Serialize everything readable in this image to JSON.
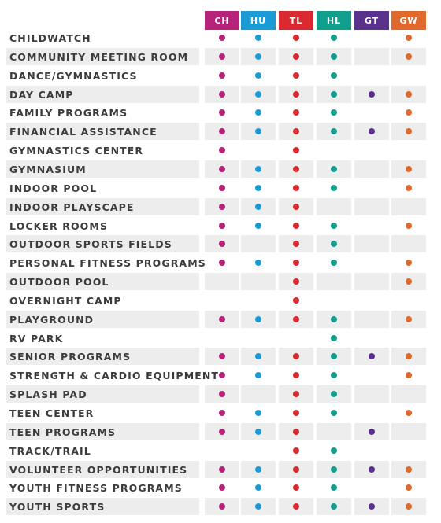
{
  "columns": [
    {
      "code": "CH",
      "color": "#b5247a"
    },
    {
      "code": "HU",
      "color": "#1b9bd6"
    },
    {
      "code": "TL",
      "color": "#d92a32"
    },
    {
      "code": "HL",
      "color": "#129e8c"
    },
    {
      "code": "GT",
      "color": "#5a318c"
    },
    {
      "code": "GW",
      "color": "#e06a2e"
    }
  ],
  "rows": [
    {
      "label": "CHILDWATCH",
      "marks": [
        1,
        1,
        1,
        1,
        0,
        1
      ]
    },
    {
      "label": "COMMUNITY MEETING ROOM",
      "marks": [
        1,
        1,
        1,
        1,
        0,
        1
      ]
    },
    {
      "label": "DANCE/GYMNASTICS",
      "marks": [
        1,
        1,
        1,
        1,
        0,
        0
      ]
    },
    {
      "label": "DAY CAMP",
      "marks": [
        1,
        1,
        1,
        1,
        1,
        1
      ]
    },
    {
      "label": "FAMILY PROGRAMS",
      "marks": [
        1,
        1,
        1,
        1,
        0,
        1
      ]
    },
    {
      "label": "FINANCIAL ASSISTANCE",
      "marks": [
        1,
        1,
        1,
        1,
        1,
        1
      ]
    },
    {
      "label": "GYMNASTICS CENTER",
      "marks": [
        1,
        0,
        1,
        0,
        0,
        0
      ]
    },
    {
      "label": "GYMNASIUM",
      "marks": [
        1,
        1,
        1,
        1,
        0,
        1
      ]
    },
    {
      "label": "INDOOR POOL",
      "marks": [
        1,
        1,
        1,
        1,
        0,
        1
      ]
    },
    {
      "label": "INDOOR PLAYSCAPE",
      "marks": [
        1,
        1,
        1,
        0,
        0,
        0
      ]
    },
    {
      "label": "LOCKER ROOMS",
      "marks": [
        1,
        1,
        1,
        1,
        0,
        1
      ]
    },
    {
      "label": "OUTDOOR SPORTS FIELDS",
      "marks": [
        1,
        0,
        1,
        1,
        0,
        0
      ]
    },
    {
      "label": "PERSONAL FITNESS PROGRAMS",
      "marks": [
        1,
        1,
        1,
        1,
        0,
        1
      ]
    },
    {
      "label": "OUTDOOR POOL",
      "marks": [
        0,
        0,
        1,
        0,
        0,
        1
      ]
    },
    {
      "label": "OVERNIGHT CAMP",
      "marks": [
        0,
        0,
        1,
        0,
        0,
        0
      ]
    },
    {
      "label": "PLAYGROUND",
      "marks": [
        1,
        1,
        1,
        1,
        0,
        1
      ]
    },
    {
      "label": "RV PARK",
      "marks": [
        0,
        0,
        0,
        1,
        0,
        0
      ]
    },
    {
      "label": "SENIOR PROGRAMS",
      "marks": [
        1,
        1,
        1,
        1,
        1,
        1
      ]
    },
    {
      "label": "STRENGTH & CARDIO EQUIPMENT",
      "marks": [
        1,
        1,
        1,
        1,
        0,
        1
      ]
    },
    {
      "label": "SPLASH PAD",
      "marks": [
        1,
        0,
        1,
        1,
        0,
        0
      ]
    },
    {
      "label": "TEEN CENTER",
      "marks": [
        1,
        1,
        1,
        1,
        0,
        1
      ]
    },
    {
      "label": "TEEN PROGRAMS",
      "marks": [
        1,
        1,
        1,
        0,
        1,
        0
      ]
    },
    {
      "label": "TRACK/TRAIL",
      "marks": [
        0,
        0,
        1,
        1,
        0,
        0
      ]
    },
    {
      "label": "VOLUNTEER OPPORTUNITIES",
      "marks": [
        1,
        1,
        1,
        1,
        1,
        1
      ]
    },
    {
      "label": "YOUTH FITNESS PROGRAMS",
      "marks": [
        1,
        1,
        1,
        1,
        0,
        1
      ]
    },
    {
      "label": "YOUTH SPORTS",
      "marks": [
        1,
        1,
        1,
        1,
        1,
        1
      ]
    }
  ]
}
